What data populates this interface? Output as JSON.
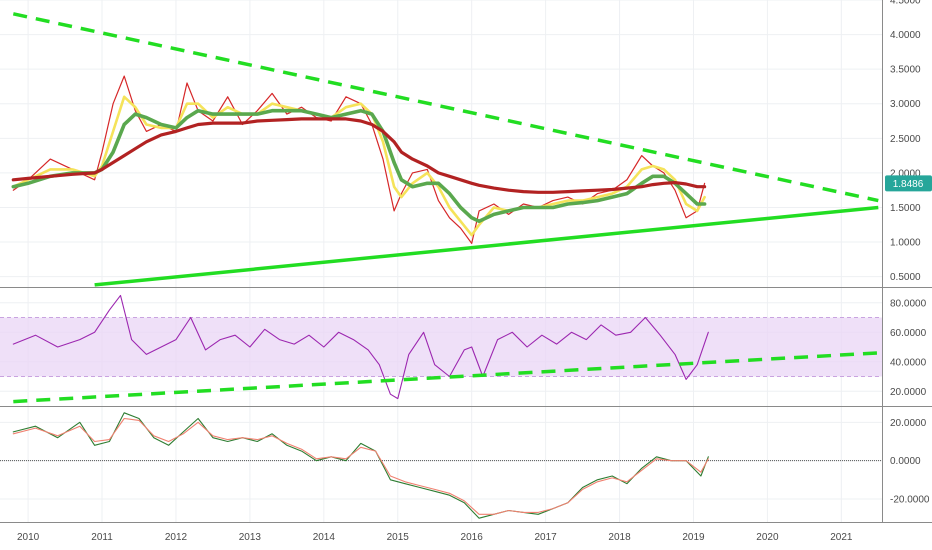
{
  "chart_data": [
    {
      "type": "line",
      "panel": "price",
      "title": "",
      "ylim": [
        0.35,
        4.5
      ],
      "y_ticks": [
        "0.5000",
        "1.0000",
        "1.5000",
        "2.0000",
        "2.5000",
        "3.0000",
        "3.5000",
        "4.0000",
        "4.5000"
      ],
      "last_value_label": "1.8486",
      "x": [
        2009.8,
        2010.0,
        2010.3,
        2010.6,
        2010.9,
        2011.0,
        2011.15,
        2011.3,
        2011.45,
        2011.6,
        2011.8,
        2012.0,
        2012.15,
        2012.3,
        2012.5,
        2012.7,
        2012.9,
        2013.1,
        2013.3,
        2013.5,
        2013.7,
        2013.9,
        2014.1,
        2014.3,
        2014.5,
        2014.65,
        2014.8,
        2014.95,
        2015.05,
        2015.2,
        2015.4,
        2015.55,
        2015.7,
        2015.85,
        2016.0,
        2016.1,
        2016.3,
        2016.5,
        2016.7,
        2016.9,
        2017.1,
        2017.3,
        2017.5,
        2017.7,
        2017.9,
        2018.1,
        2018.3,
        2018.45,
        2018.6,
        2018.75,
        2018.9,
        2019.05,
        2019.15
      ],
      "series": [
        {
          "values": [
            1.75,
            1.9,
            2.2,
            2.05,
            1.9,
            2.3,
            3.0,
            3.4,
            2.9,
            2.6,
            2.7,
            2.6,
            3.3,
            2.9,
            2.75,
            3.1,
            2.7,
            2.9,
            3.15,
            2.85,
            2.95,
            2.8,
            2.75,
            3.1,
            3.0,
            2.7,
            2.2,
            1.45,
            1.7,
            2.0,
            2.05,
            1.6,
            1.35,
            1.2,
            0.98,
            1.45,
            1.55,
            1.4,
            1.55,
            1.5,
            1.6,
            1.65,
            1.55,
            1.7,
            1.75,
            1.9,
            2.25,
            2.1,
            2.0,
            1.75,
            1.35,
            1.45,
            1.85
          ],
          "color": "#d62728"
        },
        {
          "values": [
            1.8,
            1.9,
            2.05,
            2.05,
            1.95,
            2.1,
            2.6,
            3.1,
            2.95,
            2.7,
            2.65,
            2.65,
            3.0,
            3.0,
            2.8,
            2.95,
            2.85,
            2.85,
            3.0,
            2.95,
            2.9,
            2.85,
            2.8,
            2.95,
            3.0,
            2.85,
            2.45,
            1.8,
            1.65,
            1.85,
            2.0,
            1.8,
            1.5,
            1.3,
            1.1,
            1.25,
            1.5,
            1.45,
            1.5,
            1.5,
            1.55,
            1.6,
            1.6,
            1.65,
            1.7,
            1.8,
            2.05,
            2.1,
            2.05,
            1.9,
            1.55,
            1.45,
            1.65
          ],
          "color": "#f5e35a"
        },
        {
          "values": [
            1.8,
            1.85,
            1.95,
            2.0,
            2.0,
            2.05,
            2.3,
            2.7,
            2.85,
            2.8,
            2.7,
            2.65,
            2.8,
            2.9,
            2.85,
            2.85,
            2.85,
            2.85,
            2.9,
            2.9,
            2.9,
            2.85,
            2.8,
            2.85,
            2.9,
            2.85,
            2.6,
            2.15,
            1.9,
            1.8,
            1.85,
            1.85,
            1.7,
            1.5,
            1.35,
            1.3,
            1.4,
            1.45,
            1.5,
            1.5,
            1.5,
            1.55,
            1.57,
            1.6,
            1.65,
            1.7,
            1.85,
            1.95,
            1.95,
            1.85,
            1.7,
            1.55,
            1.55
          ],
          "color": "#5aa84e"
        },
        {
          "values": [
            1.9,
            1.92,
            1.95,
            1.98,
            2.0,
            2.05,
            2.15,
            2.25,
            2.35,
            2.45,
            2.55,
            2.6,
            2.65,
            2.7,
            2.72,
            2.72,
            2.72,
            2.75,
            2.76,
            2.77,
            2.78,
            2.78,
            2.78,
            2.78,
            2.75,
            2.7,
            2.6,
            2.45,
            2.3,
            2.2,
            2.1,
            2.0,
            1.95,
            1.9,
            1.85,
            1.82,
            1.78,
            1.75,
            1.73,
            1.72,
            1.72,
            1.73,
            1.74,
            1.75,
            1.76,
            1.78,
            1.8,
            1.83,
            1.85,
            1.86,
            1.84,
            1.8,
            1.8
          ],
          "color": "#b22222"
        }
      ],
      "trendlines": [
        {
          "x": [
            2009.8,
            2021.5
          ],
          "y": [
            4.3,
            1.6
          ],
          "color": "#22dd22",
          "style": "dashed"
        },
        {
          "x": [
            2010.9,
            2021.5
          ],
          "y": [
            0.38,
            1.5
          ],
          "color": "#22dd22",
          "style": "solid"
        }
      ]
    },
    {
      "type": "line",
      "panel": "rsi",
      "ylim": [
        10,
        90
      ],
      "y_ticks": [
        "20.0000",
        "40.0000",
        "60.0000",
        "80.0000"
      ],
      "band": [
        30,
        70
      ],
      "x": [
        2009.8,
        2010.1,
        2010.4,
        2010.7,
        2010.9,
        2011.1,
        2011.25,
        2011.4,
        2011.6,
        2011.8,
        2012.0,
        2012.2,
        2012.4,
        2012.6,
        2012.8,
        2013.0,
        2013.2,
        2013.4,
        2013.6,
        2013.8,
        2014.0,
        2014.2,
        2014.4,
        2014.6,
        2014.75,
        2014.9,
        2015.0,
        2015.15,
        2015.35,
        2015.5,
        2015.7,
        2015.9,
        2016.0,
        2016.15,
        2016.35,
        2016.55,
        2016.75,
        2016.95,
        2017.15,
        2017.35,
        2017.55,
        2017.75,
        2017.95,
        2018.15,
        2018.35,
        2018.55,
        2018.75,
        2018.9,
        2019.05,
        2019.2
      ],
      "series": [
        {
          "values": [
            52,
            58,
            50,
            55,
            60,
            75,
            85,
            55,
            45,
            50,
            55,
            70,
            48,
            55,
            58,
            50,
            62,
            55,
            52,
            58,
            50,
            60,
            55,
            48,
            38,
            18,
            15,
            45,
            60,
            38,
            30,
            48,
            50,
            30,
            55,
            60,
            50,
            58,
            52,
            60,
            55,
            65,
            58,
            60,
            70,
            58,
            45,
            28,
            38,
            60
          ],
          "color": "#9c27b0"
        }
      ],
      "trendlines": [
        {
          "x": [
            2009.8,
            2021.5
          ],
          "y": [
            13,
            46
          ],
          "color": "#22dd22",
          "style": "dashed"
        }
      ]
    },
    {
      "type": "line",
      "panel": "oscillator",
      "ylim": [
        -32,
        28
      ],
      "y_ticks": [
        "20.0000",
        "0.0000",
        "-20.0000"
      ],
      "x": [
        2009.8,
        2010.1,
        2010.4,
        2010.7,
        2010.9,
        2011.1,
        2011.3,
        2011.5,
        2011.7,
        2011.9,
        2012.1,
        2012.3,
        2012.5,
        2012.7,
        2012.9,
        2013.1,
        2013.3,
        2013.5,
        2013.7,
        2013.9,
        2014.1,
        2014.3,
        2014.5,
        2014.7,
        2014.9,
        2015.1,
        2015.3,
        2015.5,
        2015.7,
        2015.9,
        2016.1,
        2016.3,
        2016.5,
        2016.7,
        2016.9,
        2017.1,
        2017.3,
        2017.5,
        2017.7,
        2017.9,
        2018.1,
        2018.3,
        2018.5,
        2018.7,
        2018.9,
        2019.1,
        2019.2
      ],
      "series": [
        {
          "values": [
            15,
            18,
            12,
            20,
            8,
            10,
            25,
            22,
            12,
            8,
            15,
            22,
            12,
            10,
            12,
            10,
            14,
            8,
            5,
            0,
            2,
            0,
            9,
            5,
            -10,
            -12,
            -14,
            -16,
            -18,
            -22,
            -30,
            -28,
            -26,
            -27,
            -28,
            -25,
            -22,
            -14,
            -10,
            -8,
            -12,
            -4,
            2,
            0,
            0,
            -8,
            2
          ],
          "color": "#2e7d32"
        },
        {
          "values": [
            14,
            17,
            13,
            18,
            10,
            11,
            22,
            21,
            13,
            10,
            14,
            20,
            13,
            11,
            12,
            11,
            13,
            9,
            6,
            1,
            2,
            1,
            7,
            5,
            -8,
            -11,
            -13,
            -15,
            -17,
            -21,
            -28,
            -28,
            -26,
            -27,
            -27,
            -25,
            -22,
            -15,
            -11,
            -9,
            -11,
            -5,
            1,
            0,
            0,
            -6,
            1
          ],
          "color": "#f08070"
        }
      ]
    }
  ],
  "x_axis": {
    "ticks": [
      "2010",
      "2011",
      "2012",
      "2013",
      "2014",
      "2015",
      "2016",
      "2017",
      "2018",
      "2019",
      "2020",
      "2021"
    ],
    "values": [
      2010,
      2011,
      2012,
      2013,
      2014,
      2015,
      2016,
      2017,
      2018,
      2019,
      2020,
      2021
    ]
  },
  "colors": {
    "last_value_badge": "#26a69a",
    "rsi_band_fill": "#e9d5f5",
    "rsi_band_border": "#c9a3e0",
    "trendline": "#22dd22"
  }
}
